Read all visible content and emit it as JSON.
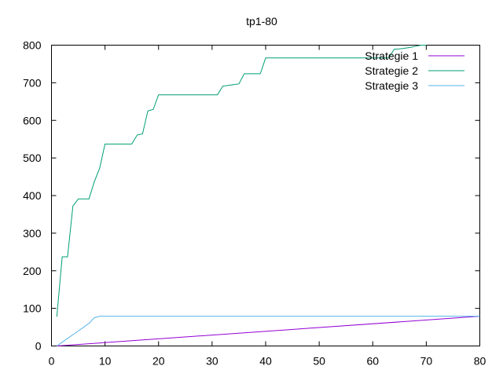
{
  "chart_data": {
    "type": "line",
    "title": "tp1-80",
    "xlabel": "",
    "ylabel": "",
    "xlim": [
      0,
      80
    ],
    "ylim": [
      0,
      800
    ],
    "xticks": [
      0,
      10,
      20,
      30,
      40,
      50,
      60,
      70,
      80
    ],
    "yticks": [
      0,
      100,
      200,
      300,
      400,
      500,
      600,
      700,
      800
    ],
    "grid": false,
    "legend_position": "top-right",
    "series": [
      {
        "name": "Strategie 1",
        "color": "#9400d3",
        "points": [
          [
            1,
            0
          ],
          [
            80,
            79
          ]
        ]
      },
      {
        "name": "Strategie 2",
        "color": "#009e73",
        "points": [
          [
            1,
            78
          ],
          [
            2,
            237
          ],
          [
            3,
            237
          ],
          [
            4,
            372
          ],
          [
            5,
            391
          ],
          [
            6,
            391
          ],
          [
            7,
            391
          ],
          [
            8,
            437
          ],
          [
            9,
            473
          ],
          [
            10,
            537
          ],
          [
            11,
            537
          ],
          [
            12,
            537
          ],
          [
            13,
            537
          ],
          [
            14,
            537
          ],
          [
            15,
            537
          ],
          [
            16,
            561
          ],
          [
            17,
            564
          ],
          [
            18,
            625
          ],
          [
            19,
            629
          ],
          [
            20,
            668
          ],
          [
            21,
            668
          ],
          [
            25,
            668
          ],
          [
            30,
            668
          ],
          [
            31,
            668
          ],
          [
            32,
            691
          ],
          [
            33,
            693
          ],
          [
            34,
            695
          ],
          [
            35,
            697
          ],
          [
            36,
            724
          ],
          [
            37,
            724
          ],
          [
            38,
            724
          ],
          [
            39,
            724
          ],
          [
            40,
            766
          ],
          [
            45,
            766
          ],
          [
            50,
            766
          ],
          [
            55,
            766
          ],
          [
            60,
            766
          ],
          [
            63,
            766
          ],
          [
            64,
            789
          ],
          [
            65,
            790
          ],
          [
            66,
            792
          ],
          [
            67,
            794
          ],
          [
            68,
            797
          ],
          [
            69,
            800
          ],
          [
            70,
            800
          ]
        ]
      },
      {
        "name": "Strategie 3",
        "color": "#56b4e9",
        "points": [
          [
            1,
            0
          ],
          [
            2,
            10
          ],
          [
            3,
            20
          ],
          [
            4,
            30
          ],
          [
            5,
            40
          ],
          [
            6,
            50
          ],
          [
            7,
            60
          ],
          [
            8,
            75
          ],
          [
            9,
            79
          ],
          [
            20,
            79
          ],
          [
            40,
            79
          ],
          [
            60,
            79
          ],
          [
            80,
            79
          ]
        ]
      }
    ]
  }
}
